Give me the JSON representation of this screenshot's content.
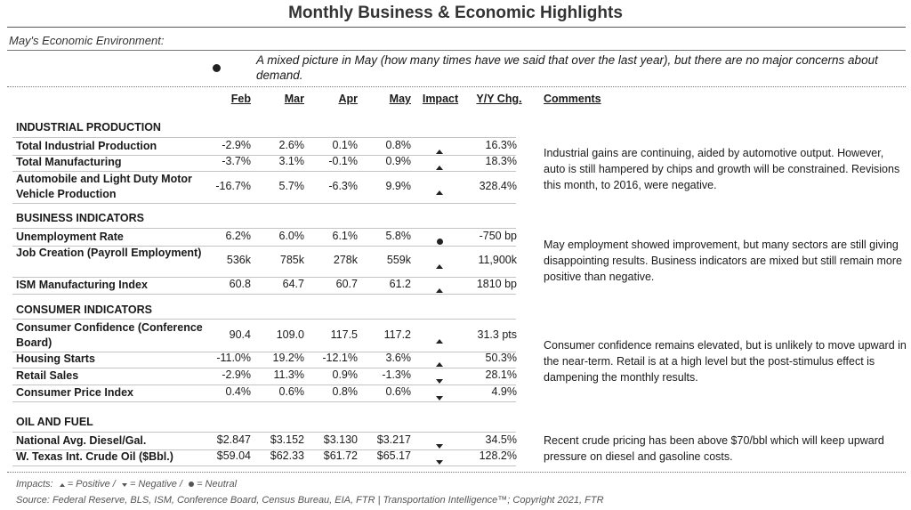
{
  "title": "Monthly Business & Economic Highlights",
  "environment": {
    "label": "May's Economic Environment:",
    "text": "A mixed picture in May (how many times have we said that over the last year), but there are no major concerns about demand."
  },
  "headers": {
    "feb": "Feb",
    "mar": "Mar",
    "apr": "Apr",
    "may": "May",
    "impact": "Impact",
    "yy": "Y/Y Chg.",
    "comments": "Comments"
  },
  "sections": {
    "industrial": {
      "title": "INDUSTRIAL PRODUCTION",
      "rows": [
        {
          "label": "Total Industrial Production",
          "feb": "-2.9%",
          "mar": "2.6%",
          "apr": "0.1%",
          "may": "0.8%",
          "impact": "up",
          "yy": "16.3%"
        },
        {
          "label": "Total Manufacturing",
          "feb": "-3.7%",
          "mar": "3.1%",
          "apr": "-0.1%",
          "may": "0.9%",
          "impact": "up",
          "yy": "18.3%"
        },
        {
          "label": "Automobile and Light Duty Motor Vehicle Production",
          "feb": "-16.7%",
          "mar": "5.7%",
          "apr": "-6.3%",
          "may": "9.9%",
          "impact": "up",
          "yy": "328.4%"
        }
      ],
      "comment": "Industrial gains are continuing, aided by automotive output. However, auto is still hampered by chips and growth will be constrained. Revisions this month, to 2016, were negative."
    },
    "business": {
      "title": "BUSINESS INDICATORS",
      "rows": [
        {
          "label": "Unemployment Rate",
          "feb": "6.2%",
          "mar": "6.0%",
          "apr": "6.1%",
          "may": "5.8%",
          "impact": "neutral",
          "yy": "-750 bp"
        },
        {
          "label": "Job Creation (Payroll Employment)",
          "feb": "536k",
          "mar": "785k",
          "apr": "278k",
          "may": "559k",
          "impact": "up",
          "yy": "11,900k"
        },
        {
          "label": "ISM Manufacturing Index",
          "feb": "60.8",
          "mar": "64.7",
          "apr": "60.7",
          "may": "61.2",
          "impact": "up",
          "yy": "1810 bp"
        }
      ],
      "comment": "May employment showed improvement, but many sectors are still giving disappointing results. Business indicators are mixed but still remain more positive than negative."
    },
    "consumer": {
      "title": "CONSUMER INDICATORS",
      "rows": [
        {
          "label": "Consumer Confidence (Conference Board)",
          "feb": "90.4",
          "mar": "109.0",
          "apr": "117.5",
          "may": "117.2",
          "impact": "up",
          "yy": "31.3 pts"
        },
        {
          "label": "Housing Starts",
          "feb": "-11.0%",
          "mar": "19.2%",
          "apr": "-12.1%",
          "may": "3.6%",
          "impact": "up",
          "yy": "50.3%"
        },
        {
          "label": "Retail Sales",
          "feb": "-2.9%",
          "mar": "11.3%",
          "apr": "0.9%",
          "may": "-1.3%",
          "impact": "down",
          "yy": "28.1%"
        },
        {
          "label": "Consumer Price Index",
          "feb": "0.4%",
          "mar": "0.6%",
          "apr": "0.8%",
          "may": "0.6%",
          "impact": "down",
          "yy": "4.9%"
        }
      ],
      "comment": "Consumer confidence remains elevated, but is unlikely to move upward in the near-term. Retail is at a high level but the post-stimulus effect is dampening the monthly results."
    },
    "oil": {
      "title": "OIL AND FUEL",
      "rows": [
        {
          "label": "National Avg. Diesel/Gal.",
          "feb": "$2.847",
          "mar": "$3.152",
          "apr": "$3.130",
          "may": "$3.217",
          "impact": "down",
          "yy": "34.5%"
        },
        {
          "label": "W. Texas Int. Crude Oil ($Bbl.)",
          "feb": "$59.04",
          "mar": "$62.33",
          "apr": "$61.72",
          "may": "$65.17",
          "impact": "down",
          "yy": "128.2%"
        }
      ],
      "comment": "Recent crude pricing has been above $70/bbl which will keep upward pressure on diesel and gasoline costs."
    }
  },
  "footer": {
    "impacts_prefix": "Impacts:",
    "positive": "= Positive /",
    "negative": "= Negative /",
    "neutral": "= Neutral",
    "source": "Source: Federal Reserve, BLS, ISM, Conference Board, Census Bureau, EIA, FTR | Transportation Intelligence™; Copyright 2021, FTR"
  }
}
